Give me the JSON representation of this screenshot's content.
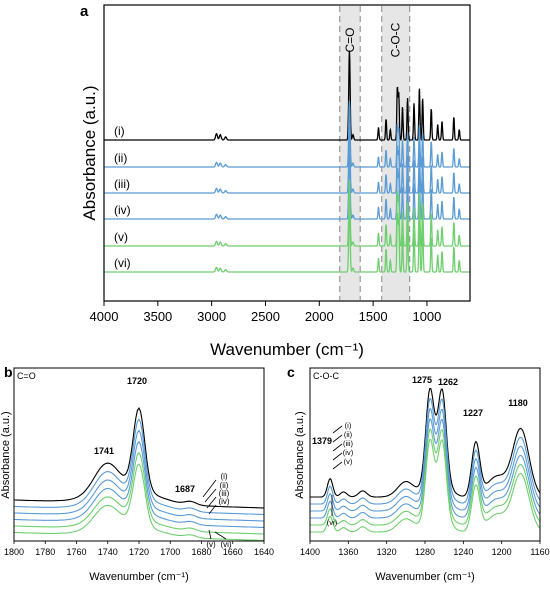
{
  "chart_data": [
    {
      "panel": "a",
      "type": "line",
      "xlabel": "Wavenumber (cm⁻¹)",
      "ylabel": "Absorbance (a.u.)",
      "xlim": [
        4000,
        600
      ],
      "x_reversed": true,
      "xticks": [
        4000,
        3500,
        3000,
        2500,
        2000,
        1500,
        1000
      ],
      "band_labels": [
        "C=O",
        "C-O-C"
      ],
      "bands": [
        {
          "label": "C=O",
          "range": [
            1810,
            1620
          ]
        },
        {
          "label": "C-O-C",
          "range": [
            1420,
            1160
          ]
        }
      ],
      "series": [
        {
          "name": "(i)",
          "color": "#000000"
        },
        {
          "name": "(ii)",
          "color": "#5b9bd5"
        },
        {
          "name": "(iii)",
          "color": "#5b9bd5"
        },
        {
          "name": "(iv)",
          "color": "#5b9bd5"
        },
        {
          "name": "(v)",
          "color": "#6fcf6f"
        },
        {
          "name": "(vi)",
          "color": "#6fcf6f"
        }
      ],
      "peaks": [
        {
          "x": 2955,
          "h": 0.06
        },
        {
          "x": 2920,
          "h": 0.05
        },
        {
          "x": 2870,
          "h": 0.03
        },
        {
          "x": 1720,
          "h": 0.85
        },
        {
          "x": 1687,
          "h": 0.05
        },
        {
          "x": 1450,
          "h": 0.12
        },
        {
          "x": 1380,
          "h": 0.2
        },
        {
          "x": 1340,
          "h": 0.1
        },
        {
          "x": 1275,
          "h": 0.5
        },
        {
          "x": 1262,
          "h": 0.45
        },
        {
          "x": 1227,
          "h": 0.32
        },
        {
          "x": 1180,
          "h": 0.4
        },
        {
          "x": 1120,
          "h": 0.35
        },
        {
          "x": 1070,
          "h": 0.5
        },
        {
          "x": 1040,
          "h": 0.4
        },
        {
          "x": 960,
          "h": 0.3
        },
        {
          "x": 900,
          "h": 0.15
        },
        {
          "x": 860,
          "h": 0.18
        },
        {
          "x": 750,
          "h": 0.22
        },
        {
          "x": 700,
          "h": 0.1
        }
      ]
    },
    {
      "panel": "b",
      "type": "line",
      "xlabel": "Wavenumber (cm⁻¹)",
      "ylabel": "Absorbance (a.u.)",
      "xlim": [
        1800,
        1640
      ],
      "x_reversed": true,
      "xticks": [
        1800,
        1780,
        1760,
        1740,
        1720,
        1700,
        1680,
        1660,
        1640
      ],
      "inner_label": "C=O",
      "peak_labels": [
        {
          "text": "1720",
          "x": 1720
        },
        {
          "text": "1741",
          "x": 1741
        },
        {
          "text": "1687",
          "x": 1687
        }
      ],
      "series": [
        {
          "name": "(i)",
          "color": "#000000"
        },
        {
          "name": "(ii)",
          "color": "#5b9bd5"
        },
        {
          "name": "(iii)",
          "color": "#5b9bd5"
        },
        {
          "name": "(iv)",
          "color": "#5b9bd5"
        },
        {
          "name": "(v)",
          "color": "#6fcf6f"
        },
        {
          "name": "(vi)",
          "color": "#6fcf6f"
        }
      ],
      "series_labels": [
        "(i)",
        "(ii)",
        "(iii)",
        "(iv)",
        "(v)",
        "(vi)"
      ]
    },
    {
      "panel": "c",
      "type": "line",
      "xlabel": "Wavenumber (cm⁻¹)",
      "ylabel": "Absorbance (a.u.)",
      "xlim": [
        1400,
        1160
      ],
      "x_reversed": true,
      "xticks": [
        1400,
        1360,
        1320,
        1280,
        1240,
        1200,
        1160
      ],
      "inner_label": "C-O-C",
      "peak_labels": [
        {
          "text": "1379",
          "x": 1379
        },
        {
          "text": "1275",
          "x": 1275
        },
        {
          "text": "1262",
          "x": 1262
        },
        {
          "text": "1227",
          "x": 1227
        },
        {
          "text": "1180",
          "x": 1180
        }
      ],
      "series": [
        {
          "name": "(i)",
          "color": "#000000"
        },
        {
          "name": "(ii)",
          "color": "#5b9bd5"
        },
        {
          "name": "(iii)",
          "color": "#5b9bd5"
        },
        {
          "name": "(iv)",
          "color": "#5b9bd5"
        },
        {
          "name": "(v)",
          "color": "#6fcf6f"
        },
        {
          "name": "(vi)",
          "color": "#6fcf6f"
        }
      ],
      "series_labels": [
        "(i)",
        "(ii)",
        "(iii)",
        "(iv)",
        "(v)",
        "(vi)"
      ]
    }
  ],
  "panel_letters": [
    "a",
    "b",
    "c"
  ]
}
